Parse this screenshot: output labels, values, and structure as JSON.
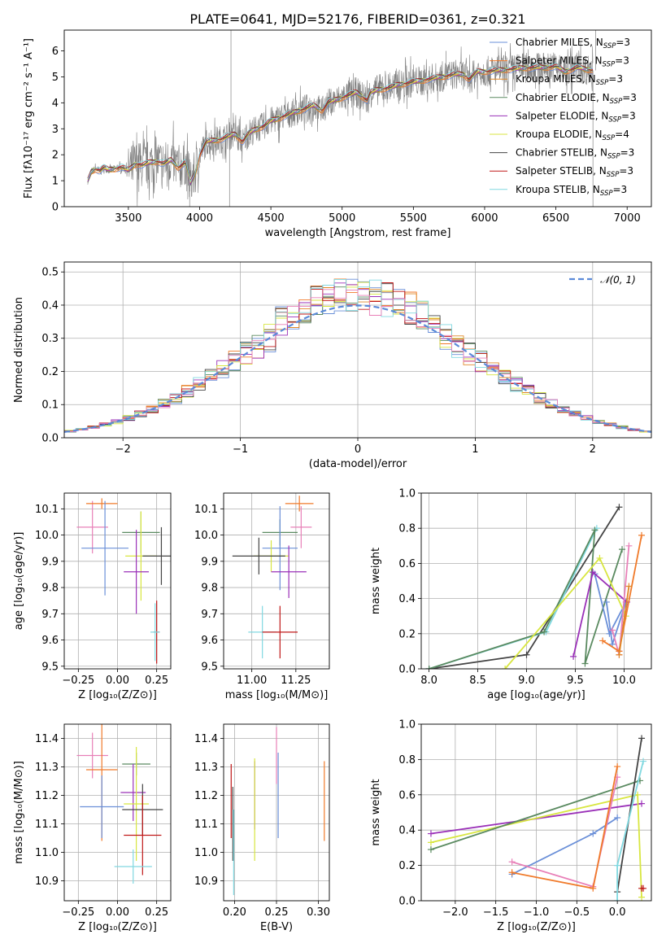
{
  "figure": {
    "title": "PLATE=0641, MJD=52176, FIBERID=0361, z=0.321"
  },
  "colors": {
    "Chabrier MILES": "#6a8fd8",
    "Salpeter MILES": "#f07a2a",
    "Kroupa MILES": "#e08828",
    "Chabrier ELODIE": "#5a8a60",
    "Salpeter ELODIE": "#9a30b8",
    "Kroupa ELODIE": "#d8e640",
    "Chabrier STELIB": "#444444",
    "Salpeter STELIB": "#c01818",
    "Kroupa STELIB": "#80d8e0",
    "pink": "#e880b8",
    "data": "#808080"
  },
  "chart_data": [
    {
      "id": "spectrum",
      "type": "line",
      "xlabel": "wavelength [Angstrom, rest frame]",
      "ylabel": "Flux [fλ10⁻¹⁷ erg cm⁻² s⁻¹ A⁻¹]",
      "xlim": [
        3050,
        7170
      ],
      "ylim": [
        0,
        6.8
      ],
      "xticks": [
        3500,
        4000,
        4500,
        5000,
        5500,
        6000,
        6500,
        7000
      ],
      "yticks": [
        0,
        1,
        2,
        3,
        4,
        5,
        6
      ],
      "legend": [
        {
          "label": "Chabrier MILES, N",
          "sub": "SSP",
          "n": "=3",
          "color": "#6a8fd8"
        },
        {
          "label": "Salpeter MILES, N",
          "sub": "SSP",
          "n": "=3",
          "color": "#f07a2a"
        },
        {
          "label": "Kroupa MILES, N",
          "sub": "SSP",
          "n": "=3",
          "color": "#e08828"
        },
        {
          "label": "Chabrier ELODIE, N",
          "sub": "SSP",
          "n": "=3",
          "color": "#5a8a60"
        },
        {
          "label": "Salpeter ELODIE, N",
          "sub": "SSP",
          "n": "=3",
          "color": "#9a30b8"
        },
        {
          "label": "Kroupa ELODIE, N",
          "sub": "SSP",
          "n": "=4",
          "color": "#d8e640"
        },
        {
          "label": "Chabrier STELIB, N",
          "sub": "SSP",
          "n": "=3",
          "color": "#444444"
        },
        {
          "label": "Salpeter STELIB, N",
          "sub": "SSP",
          "n": "=3",
          "color": "#c01818"
        },
        {
          "label": "Kroupa STELIB, N",
          "sub": "SSP",
          "n": "=3",
          "color": "#80d8e0"
        }
      ],
      "continuum": [
        [
          3215,
          1.0
        ],
        [
          3240,
          1.35
        ],
        [
          3270,
          1.45
        ],
        [
          3300,
          1.38
        ],
        [
          3330,
          1.5
        ],
        [
          3360,
          1.42
        ],
        [
          3400,
          1.45
        ],
        [
          3450,
          1.52
        ],
        [
          3500,
          1.4
        ],
        [
          3550,
          1.65
        ],
        [
          3600,
          1.6
        ],
        [
          3650,
          1.7
        ],
        [
          3700,
          1.75
        ],
        [
          3750,
          1.65
        ],
        [
          3800,
          1.8
        ],
        [
          3850,
          1.5
        ],
        [
          3900,
          1.7
        ],
        [
          3935,
          0.9
        ],
        [
          3970,
          1.3
        ],
        [
          4000,
          2.0
        ],
        [
          4050,
          2.5
        ],
        [
          4100,
          2.55
        ],
        [
          4150,
          2.6
        ],
        [
          4200,
          2.7
        ],
        [
          4250,
          2.8
        ],
        [
          4300,
          2.5
        ],
        [
          4350,
          2.85
        ],
        [
          4400,
          3.0
        ],
        [
          4450,
          3.1
        ],
        [
          4500,
          3.3
        ],
        [
          4550,
          3.4
        ],
        [
          4600,
          3.5
        ],
        [
          4650,
          3.6
        ],
        [
          4700,
          3.7
        ],
        [
          4750,
          3.8
        ],
        [
          4800,
          3.9
        ],
        [
          4860,
          3.7
        ],
        [
          4900,
          4.0
        ],
        [
          4950,
          4.1
        ],
        [
          5000,
          4.2
        ],
        [
          5050,
          4.3
        ],
        [
          5100,
          4.4
        ],
        [
          5175,
          4.1
        ],
        [
          5200,
          4.4
        ],
        [
          5250,
          4.5
        ],
        [
          5300,
          4.55
        ],
        [
          5350,
          4.6
        ],
        [
          5400,
          4.7
        ],
        [
          5450,
          4.75
        ],
        [
          5500,
          4.8
        ],
        [
          5550,
          4.85
        ],
        [
          5600,
          4.9
        ],
        [
          5650,
          4.95
        ],
        [
          5700,
          5.0
        ],
        [
          5750,
          5.05
        ],
        [
          5800,
          5.1
        ],
        [
          5850,
          5.1
        ],
        [
          5890,
          4.9
        ],
        [
          5950,
          5.2
        ],
        [
          6000,
          5.2
        ],
        [
          6100,
          5.25
        ],
        [
          6200,
          5.3
        ],
        [
          6300,
          5.35
        ],
        [
          6400,
          5.35
        ],
        [
          6500,
          5.4
        ],
        [
          6563,
          5.2
        ],
        [
          6650,
          5.35
        ],
        [
          6700,
          5.3
        ],
        [
          6760,
          5.25
        ]
      ]
    },
    {
      "id": "residuals",
      "type": "line",
      "xlabel": "(data-model)/error",
      "ylabel": "Normed distribution",
      "xlim": [
        -2.5,
        2.5
      ],
      "ylim": [
        0,
        0.53
      ],
      "xticks": [
        -2,
        -1,
        0,
        1,
        2
      ],
      "yticks": [
        0.0,
        0.1,
        0.2,
        0.3,
        0.4,
        0.5
      ],
      "legend": "𝒩(0, 1)"
    },
    {
      "id": "age-vs-Z",
      "type": "scatter",
      "xlabel": "Z [log₁₀(Z/Z⊙)]",
      "ylabel": "age  [log₁₀(age/yr)]",
      "xlim": [
        -0.34,
        0.34
      ],
      "ylim": [
        9.49,
        10.16
      ],
      "xticks": [
        -0.25,
        0.0,
        0.25
      ],
      "yticks": [
        9.5,
        9.6,
        9.7,
        9.8,
        9.9,
        10.0,
        10.1
      ],
      "points": [
        {
          "x": -0.16,
          "y": 10.03,
          "xerr": 0.1,
          "yerr": 0.1,
          "color": "#e880b8"
        },
        {
          "x": -0.1,
          "y": 10.12,
          "xerr": 0.1,
          "yerr": 0.02,
          "color": "#f07a2a"
        },
        {
          "x": -0.08,
          "y": 9.95,
          "xerr": 0.15,
          "yerr": 0.18,
          "color": "#6a8fd8"
        },
        {
          "x": 0.15,
          "y": 10.01,
          "xerr": 0.12,
          "yerr": 0.08,
          "color": "#5a8a60"
        },
        {
          "x": 0.15,
          "y": 9.92,
          "xerr": 0.1,
          "yerr": 0.17,
          "color": "#d8e640"
        },
        {
          "x": 0.12,
          "y": 9.86,
          "xerr": 0.08,
          "yerr": 0.16,
          "color": "#9a30b8"
        },
        {
          "x": 0.28,
          "y": 9.92,
          "xerr": 0.12,
          "yerr": 0.11,
          "color": "#444444"
        },
        {
          "x": 0.25,
          "y": 9.63,
          "xerr": 0.02,
          "yerr": 0.12,
          "color": "#c01818"
        },
        {
          "x": 0.24,
          "y": 9.63,
          "xerr": 0.03,
          "yerr": 0.11,
          "color": "#80d8e0"
        }
      ]
    },
    {
      "id": "age-vs-mass",
      "type": "scatter",
      "xlabel": "mass [log₁₀(M/M⊙)]",
      "ylabel": "",
      "xlim": [
        10.84,
        11.44
      ],
      "ylim": [
        9.49,
        10.16
      ],
      "xticks": [
        11.0,
        11.25
      ],
      "yticks": [
        9.5,
        9.6,
        9.7,
        9.8,
        9.9,
        10.0,
        10.1
      ],
      "points": [
        {
          "x": 11.28,
          "y": 10.03,
          "xerr": 0.06,
          "yerr": 0.08,
          "color": "#e880b8"
        },
        {
          "x": 11.27,
          "y": 10.12,
          "xerr": 0.08,
          "yerr": 0.03,
          "color": "#f07a2a"
        },
        {
          "x": 11.16,
          "y": 10.01,
          "xerr": 0.1,
          "yerr": 0.05,
          "color": "#5a8a60"
        },
        {
          "x": 11.16,
          "y": 9.95,
          "xerr": 0.1,
          "yerr": 0.16,
          "color": "#6a8fd8"
        },
        {
          "x": 11.11,
          "y": 9.92,
          "xerr": 0.1,
          "yerr": 0.06,
          "color": "#d8e640"
        },
        {
          "x": 11.04,
          "y": 9.92,
          "xerr": 0.15,
          "yerr": 0.07,
          "color": "#444444"
        },
        {
          "x": 11.21,
          "y": 9.86,
          "xerr": 0.1,
          "yerr": 0.1,
          "color": "#9a30b8"
        },
        {
          "x": 11.06,
          "y": 9.63,
          "xerr": 0.08,
          "yerr": 0.1,
          "color": "#80d8e0"
        },
        {
          "x": 11.16,
          "y": 9.63,
          "xerr": 0.1,
          "yerr": 0.1,
          "color": "#c01818"
        }
      ]
    },
    {
      "id": "mass-weight-vs-age",
      "type": "line",
      "xlabel": "age  [log₁₀(age/yr)]",
      "ylabel": "mass weight",
      "xlim": [
        7.92,
        10.28
      ],
      "ylim": [
        0,
        1.0
      ],
      "xticks": [
        8.0,
        8.5,
        9.0,
        9.5,
        10.0
      ],
      "yticks": [
        0.0,
        0.2,
        0.4,
        0.6,
        0.8,
        1.0
      ],
      "series": [
        {
          "color": "#444444",
          "points": [
            [
              8.0,
              0.0
            ],
            [
              9.0,
              0.08
            ],
            [
              9.95,
              0.92
            ]
          ]
        },
        {
          "color": "#80d8e0",
          "points": [
            [
              8.0,
              0.0
            ],
            [
              9.2,
              0.21
            ],
            [
              9.72,
              0.8
            ]
          ]
        },
        {
          "color": "#5a8a60",
          "points": [
            [
              8.0,
              0.0
            ],
            [
              9.18,
              0.21
            ],
            [
              9.7,
              0.79
            ],
            [
              9.6,
              0.03
            ],
            [
              9.98,
              0.68
            ]
          ]
        },
        {
          "color": "#6a8fd8",
          "points": [
            [
              9.82,
              0.38
            ],
            [
              9.88,
              0.14
            ],
            [
              10.02,
              0.38
            ],
            [
              9.85,
              0.2
            ],
            [
              9.7,
              0.54
            ]
          ]
        },
        {
          "color": "#9a30b8",
          "points": [
            [
              9.48,
              0.07
            ],
            [
              9.68,
              0.55
            ],
            [
              10.03,
              0.38
            ],
            [
              9.95,
              0.1
            ]
          ]
        },
        {
          "color": "#d8e640",
          "points": [
            [
              8.78,
              0.0
            ],
            [
              9.75,
              0.63
            ],
            [
              10.02,
              0.3
            ]
          ]
        },
        {
          "color": "#e880b8",
          "points": [
            [
              9.88,
              0.22
            ],
            [
              9.95,
              0.08
            ],
            [
              10.05,
              0.7
            ]
          ]
        },
        {
          "color": "#f07a2a",
          "points": [
            [
              9.78,
              0.16
            ],
            [
              9.95,
              0.1
            ],
            [
              10.18,
              0.76
            ]
          ]
        },
        {
          "color": "#e08828",
          "points": [
            [
              9.95,
              0.08
            ],
            [
              10.05,
              0.47
            ]
          ]
        }
      ]
    },
    {
      "id": "mass-vs-Z",
      "type": "scatter",
      "xlabel": "Z [log₁₀(Z/Z⊙)]",
      "ylabel": "mass [log₁₀(M/M⊙)]",
      "xlim": [
        -0.34,
        0.34
      ],
      "ylim": [
        10.83,
        11.45
      ],
      "xticks": [
        -0.25,
        0.0,
        0.25
      ],
      "yticks": [
        10.9,
        11.0,
        11.1,
        11.2,
        11.3,
        11.4
      ],
      "points": [
        {
          "x": -0.16,
          "y": 11.34,
          "xerr": 0.1,
          "yerr": 0.08,
          "color": "#e880b8"
        },
        {
          "x": -0.1,
          "y": 11.29,
          "xerr": 0.1,
          "yerr": 0.25,
          "color": "#f07a2a"
        },
        {
          "x": -0.1,
          "y": 11.16,
          "xerr": 0.14,
          "yerr": 0.11,
          "color": "#6a8fd8"
        },
        {
          "x": 0.12,
          "y": 11.31,
          "xerr": 0.09,
          "yerr": 0.04,
          "color": "#5a8a60"
        },
        {
          "x": 0.1,
          "y": 11.21,
          "xerr": 0.08,
          "yerr": 0.1,
          "color": "#9a30b8"
        },
        {
          "x": 0.12,
          "y": 11.17,
          "xerr": 0.08,
          "yerr": 0.2,
          "color": "#d8e640"
        },
        {
          "x": 0.16,
          "y": 11.15,
          "xerr": 0.13,
          "yerr": 0.09,
          "color": "#444444"
        },
        {
          "x": 0.16,
          "y": 11.06,
          "xerr": 0.12,
          "yerr": 0.14,
          "color": "#c01818"
        },
        {
          "x": 0.1,
          "y": 10.95,
          "xerr": 0.12,
          "yerr": 0.06,
          "color": "#80d8e0"
        }
      ]
    },
    {
      "id": "mass-vs-EBV",
      "type": "scatter",
      "xlabel": "E(B-V)",
      "ylabel": "",
      "xlim": [
        0.187,
        0.313
      ],
      "ylim": [
        10.83,
        11.45
      ],
      "xticks": [
        0.2,
        0.25,
        0.3
      ],
      "yticks": [
        10.9,
        11.0,
        11.1,
        11.2,
        11.3,
        11.4
      ],
      "points": [
        {
          "x": 0.196,
          "y": 11.18,
          "yerr": 0.13,
          "color": "#c01818"
        },
        {
          "x": 0.198,
          "y": 11.1,
          "yerr": 0.13,
          "color": "#444444"
        },
        {
          "x": 0.199,
          "y": 11.0,
          "yerr": 0.15,
          "color": "#80d8e0"
        },
        {
          "x": 0.224,
          "y": 11.2,
          "yerr": 0.12,
          "color": "#9a30b8"
        },
        {
          "x": 0.224,
          "y": 11.15,
          "yerr": 0.18,
          "color": "#d8e640"
        },
        {
          "x": 0.25,
          "y": 11.34,
          "yerr": 0.1,
          "color": "#e880b8"
        },
        {
          "x": 0.252,
          "y": 11.2,
          "yerr": 0.15,
          "color": "#6a8fd8"
        },
        {
          "x": 0.307,
          "y": 11.18,
          "yerr": 0.14,
          "color": "#f07a2a"
        }
      ]
    },
    {
      "id": "mass-weight-vs-Z",
      "type": "line",
      "xlabel": "Z [log₁₀(Z/Z⊙)]",
      "ylabel": "mass weight",
      "xlim": [
        -2.42,
        0.42
      ],
      "ylim": [
        0,
        1.0
      ],
      "xticks": [
        -2.0,
        -1.5,
        -1.0,
        -0.5,
        0.0
      ],
      "yticks": [
        0.0,
        0.2,
        0.4,
        0.6,
        0.8,
        1.0
      ],
      "series": [
        {
          "color": "#9a30b8",
          "points": [
            [
              -2.3,
              0.38
            ],
            [
              0.3,
              0.55
            ]
          ]
        },
        {
          "color": "#d8e640",
          "points": [
            [
              -2.3,
              0.33
            ],
            [
              0.25,
              0.6
            ],
            [
              0.3,
              0.02
            ]
          ]
        },
        {
          "color": "#5a8a60",
          "points": [
            [
              -2.3,
              0.29
            ],
            [
              0.28,
              0.68
            ]
          ]
        },
        {
          "color": "#6a8fd8",
          "points": [
            [
              -1.3,
              0.15
            ],
            [
              -0.3,
              0.38
            ],
            [
              0.0,
              0.47
            ]
          ]
        },
        {
          "color": "#e880b8",
          "points": [
            [
              -1.3,
              0.22
            ],
            [
              -0.3,
              0.08
            ],
            [
              0.0,
              0.7
            ]
          ]
        },
        {
          "color": "#f07a2a",
          "points": [
            [
              -1.3,
              0.16
            ],
            [
              -0.3,
              0.07
            ],
            [
              0.0,
              0.76
            ]
          ]
        },
        {
          "color": "#444444",
          "points": [
            [
              0.0,
              0.05
            ],
            [
              0.3,
              0.92
            ]
          ]
        },
        {
          "color": "#80d8e0",
          "points": [
            [
              0.0,
              0.0
            ],
            [
              0.0,
              0.2
            ],
            [
              0.32,
              0.79
            ]
          ]
        },
        {
          "color": "#c01818",
          "points": [
            [
              0.3,
              0.07
            ],
            [
              0.32,
              0.07
            ]
          ]
        }
      ]
    }
  ]
}
